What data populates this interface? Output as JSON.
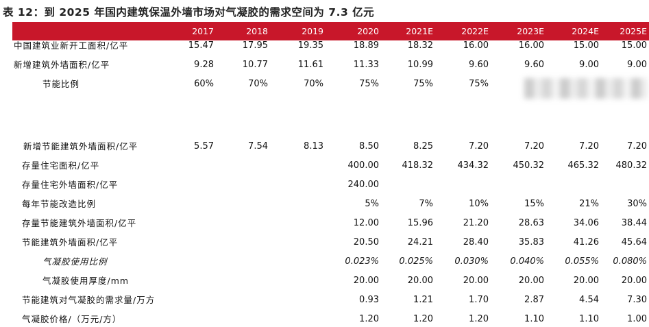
{
  "title": "表 12：到 2025 年国内建筑保温外墙市场对气凝胶的需求空间为 7.3 亿元",
  "years": [
    "2017",
    "2018",
    "2019",
    "2020",
    "2021E",
    "2022E",
    "2023E",
    "2024E",
    "2025E"
  ],
  "rows": [
    {
      "label": "中国建筑业新开工面积/亿平",
      "values": [
        "15.47",
        "17.95",
        "19.35",
        "18.89",
        "18.32",
        "16.00",
        "16.00",
        "15.00",
        "15.00"
      ]
    },
    {
      "label": "新增建筑外墙面积/亿平",
      "values": [
        "9.28",
        "10.77",
        "11.61",
        "11.33",
        "10.99",
        "9.60",
        "9.60",
        "9.00",
        "9.00"
      ]
    },
    {
      "label": "节能比例",
      "values": [
        "60%",
        "70%",
        "70%",
        "75%",
        "75%",
        "75%",
        "",
        "",
        ""
      ]
    },
    {
      "label": "新增节能建筑外墙面积/亿平",
      "values": [
        "5.57",
        "7.54",
        "8.13",
        "8.50",
        "8.25",
        "7.20",
        "7.20",
        "7.20",
        "7.20"
      ]
    },
    {
      "label": "存量住宅面积/亿平",
      "values": [
        "",
        "",
        "",
        "400.00",
        "418.32",
        "434.32",
        "450.32",
        "465.32",
        "480.32"
      ]
    },
    {
      "label": "存量住宅外墙面积/亿平",
      "values": [
        "",
        "",
        "",
        "240.00",
        "",
        "",
        "",
        "",
        ""
      ]
    },
    {
      "label": "每年节能改造比例",
      "values": [
        "",
        "",
        "",
        "5%",
        "7%",
        "10%",
        "15%",
        "21%",
        "30%"
      ]
    },
    {
      "label": "存量节能建筑外墙面积/亿平",
      "values": [
        "",
        "",
        "",
        "12.00",
        "15.96",
        "21.20",
        "28.63",
        "34.06",
        "38.44"
      ]
    },
    {
      "label": "节能建筑外墙面积/亿平",
      "values": [
        "",
        "",
        "",
        "20.50",
        "24.21",
        "28.40",
        "35.83",
        "41.26",
        "45.64"
      ]
    },
    {
      "label": "气凝胶使用比例",
      "values": [
        "",
        "",
        "",
        "0.023%",
        "0.025%",
        "0.030%",
        "0.040%",
        "0.055%",
        "0.080%"
      ]
    },
    {
      "label": "气凝胶使用厚度/mm",
      "values": [
        "",
        "",
        "",
        "20.00",
        "20.00",
        "20.00",
        "20.00",
        "20.00",
        "20.00"
      ]
    },
    {
      "label": "节能建筑对气凝胶的需求量/万方",
      "values": [
        "",
        "",
        "",
        "0.93",
        "1.21",
        "1.70",
        "2.87",
        "4.54",
        "7.30"
      ]
    },
    {
      "label": "气凝胶价格/（万元/方）",
      "values": [
        "",
        "",
        "",
        "1.20",
        "1.20",
        "1.20",
        "1.10",
        "1.10",
        "1.00"
      ]
    }
  ],
  "colors": {
    "header_bg": "#c8172a",
    "header_text": "#ffffff"
  }
}
